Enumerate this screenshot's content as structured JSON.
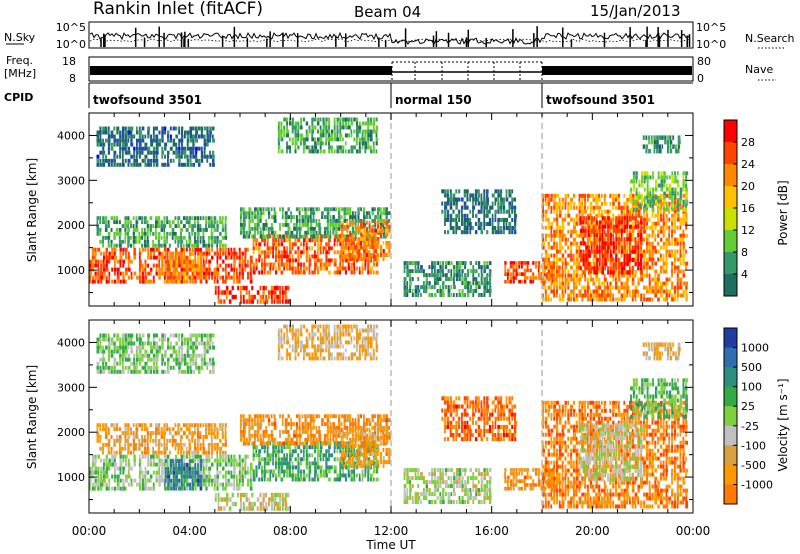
{
  "header": {
    "station": "Rankin Inlet (fitACF)",
    "beam": "Beam 04",
    "date": "15/Jan/2013"
  },
  "noise_panel": {
    "left_label": "N.Sky",
    "right_label": "N.Search",
    "left_ticks": [
      "10^5",
      "10^0"
    ],
    "right_ticks": [
      "10^5",
      "10^0"
    ]
  },
  "freq_panel": {
    "left_label_1": "Freq.",
    "left_label_2": "[MHz]",
    "right_label": "Nave",
    "left_ticks": [
      "18",
      "8"
    ],
    "right_ticks": [
      "80",
      "0"
    ]
  },
  "cpid": {
    "label": "CPID",
    "segments": [
      {
        "name": "twofsound 3501",
        "start_hour": 0
      },
      {
        "name": "normal 150",
        "start_hour": 12
      },
      {
        "name": "twofsound 3501",
        "start_hour": 18
      }
    ]
  },
  "power_colorbar": {
    "label": "Power [dB]",
    "ticks": [
      "28",
      "24",
      "20",
      "16",
      "12",
      "8",
      "4"
    ],
    "colors": [
      "#ff0000",
      "#ff4400",
      "#ff8800",
      "#ffc000",
      "#cce000",
      "#66cc33",
      "#339966",
      "#1f6f5f",
      "#1f4fa0",
      "#0000ff"
    ]
  },
  "velocity_colorbar": {
    "label": "Velocity [m s⁻¹]",
    "ticks": [
      "1000",
      "500",
      "100",
      "25",
      "-25",
      "-100",
      "-500",
      "-1000"
    ],
    "colors": [
      "#1f3fa0",
      "#2f6fb0",
      "#2f8f7f",
      "#33aa44",
      "#7fd03f",
      "#c0c0c0",
      "#d8a040",
      "#ff9900",
      "#ff7a00",
      "#ff4400",
      "#ff0000"
    ]
  },
  "axes": {
    "ylabel": "Slant Range [km]",
    "xlabel": "Time UT",
    "x_ticks": [
      "00:00",
      "04:00",
      "08:00",
      "12:00",
      "16:00",
      "20:00",
      "00:00"
    ],
    "y_ticks": [
      "1000",
      "2000",
      "3000",
      "4000"
    ]
  },
  "chart_data": [
    {
      "type": "heatmap",
      "title": "",
      "quantity": "Power",
      "unit": "dB",
      "xlabel": "Time UT",
      "ylabel": "Slant Range [km]",
      "xlim_hours": [
        0,
        24
      ],
      "ylim_km": [
        200,
        4500
      ],
      "clim": [
        0,
        32
      ],
      "vertical_markers_hours": [
        12,
        18
      ],
      "regions": [
        {
          "t0": 0.0,
          "t1": 6.5,
          "r0": 700,
          "r1": 1500,
          "v": 27
        },
        {
          "t0": 0.3,
          "t1": 5.5,
          "r0": 1500,
          "r1": 2200,
          "v": 12
        },
        {
          "t0": 3.0,
          "t1": 4.5,
          "r0": 700,
          "r1": 1400,
          "v": 24
        },
        {
          "t0": 5.0,
          "t1": 8.0,
          "r0": 250,
          "r1": 650,
          "v": 28
        },
        {
          "t0": 6.5,
          "t1": 11.5,
          "r0": 900,
          "r1": 1800,
          "v": 26
        },
        {
          "t0": 6.0,
          "t1": 12.0,
          "r0": 1700,
          "r1": 2400,
          "v": 12
        },
        {
          "t0": 10.0,
          "t1": 12.0,
          "r0": 1200,
          "r1": 2100,
          "v": 25
        },
        {
          "t0": 0.3,
          "t1": 5.0,
          "r0": 3300,
          "r1": 4200,
          "v": 7
        },
        {
          "t0": 7.5,
          "t1": 11.5,
          "r0": 3600,
          "r1": 4400,
          "v": 12
        },
        {
          "t0": 12.5,
          "t1": 16.0,
          "r0": 400,
          "r1": 1200,
          "v": 10
        },
        {
          "t0": 14.0,
          "t1": 17.0,
          "r0": 1800,
          "r1": 2800,
          "v": 8
        },
        {
          "t0": 16.5,
          "t1": 18.5,
          "r0": 700,
          "r1": 1200,
          "v": 27
        },
        {
          "t0": 18.0,
          "t1": 23.8,
          "r0": 300,
          "r1": 2700,
          "v": 24
        },
        {
          "t0": 19.5,
          "t1": 22.0,
          "r0": 900,
          "r1": 2200,
          "v": 29
        },
        {
          "t0": 21.5,
          "t1": 23.8,
          "r0": 2300,
          "r1": 3200,
          "v": 14
        },
        {
          "t0": 22.0,
          "t1": 23.5,
          "r0": 3600,
          "r1": 4000,
          "v": 10
        }
      ]
    },
    {
      "type": "heatmap",
      "title": "",
      "quantity": "Velocity",
      "unit": "m s^-1",
      "xlabel": "Time UT",
      "ylabel": "Slant Range [km]",
      "xlim_hours": [
        0,
        24
      ],
      "ylim_km": [
        200,
        4500
      ],
      "clim": [
        -1000,
        1000
      ],
      "vertical_markers_hours": [
        12,
        18
      ],
      "regions": [
        {
          "t0": 0.0,
          "t1": 6.5,
          "r0": 700,
          "r1": 1500,
          "v": 150
        },
        {
          "t0": 0.3,
          "t1": 5.5,
          "r0": 1500,
          "r1": 2200,
          "v": -300
        },
        {
          "t0": 3.0,
          "t1": 4.5,
          "r0": 700,
          "r1": 1400,
          "v": 600
        },
        {
          "t0": 5.0,
          "t1": 8.0,
          "r0": 250,
          "r1": 650,
          "v": 0
        },
        {
          "t0": 6.5,
          "t1": 11.5,
          "r0": 900,
          "r1": 1800,
          "v": 400
        },
        {
          "t0": 6.0,
          "t1": 12.0,
          "r0": 1700,
          "r1": 2400,
          "v": -400
        },
        {
          "t0": 10.0,
          "t1": 12.0,
          "r0": 1200,
          "r1": 2100,
          "v": -300
        },
        {
          "t0": 0.3,
          "t1": 5.0,
          "r0": 3300,
          "r1": 4200,
          "v": 200
        },
        {
          "t0": 7.5,
          "t1": 11.5,
          "r0": 3600,
          "r1": 4400,
          "v": -200
        },
        {
          "t0": 12.5,
          "t1": 16.0,
          "r0": 400,
          "r1": 1200,
          "v": 80
        },
        {
          "t0": 14.0,
          "t1": 17.0,
          "r0": 1800,
          "r1": 2800,
          "v": -600
        },
        {
          "t0": 16.5,
          "t1": 18.5,
          "r0": 700,
          "r1": 1200,
          "v": -400
        },
        {
          "t0": 18.0,
          "t1": 23.8,
          "r0": 300,
          "r1": 2700,
          "v": -500
        },
        {
          "t0": 19.5,
          "t1": 22.0,
          "r0": 900,
          "r1": 2200,
          "v": 0
        },
        {
          "t0": 21.5,
          "t1": 23.8,
          "r0": 2300,
          "r1": 3200,
          "v": 300
        },
        {
          "t0": 22.0,
          "t1": 23.5,
          "r0": 3600,
          "r1": 4000,
          "v": -200
        }
      ]
    }
  ]
}
